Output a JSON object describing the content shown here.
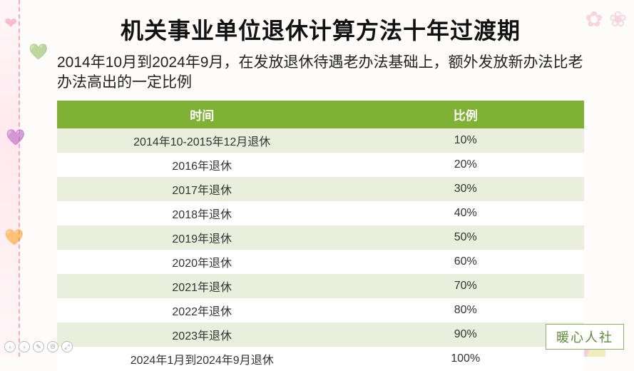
{
  "title": "机关事业单位退休计算方法十年过渡期",
  "subtitle": "2014年10月到2024年9月，在发放退休待遇老办法基础上，额外发放新办法比老办法高出的一定比例",
  "table": {
    "type": "table",
    "header_bg": "#7fb135",
    "header_color": "#ffffff",
    "row_odd_bg": "#e9efdc",
    "row_even_bg": "#ffffff",
    "columns": [
      "时间",
      "比例"
    ],
    "rows": [
      [
        "2014年10-2015年12月退休",
        "10%"
      ],
      [
        "2016年退休",
        "20%"
      ],
      [
        "2017年退休",
        "30%"
      ],
      [
        "2018年退休",
        "40%"
      ],
      [
        "2019年退休",
        "50%"
      ],
      [
        "2020年退休",
        "60%"
      ],
      [
        "2021年退休",
        "70%"
      ],
      [
        "2022年退休",
        "80%"
      ],
      [
        "2023年退休",
        "90%"
      ],
      [
        "2024年1月到2024年9月退休",
        "100%"
      ]
    ]
  },
  "watermark": "暖心人社",
  "nav": {
    "i1": "‹",
    "i2": "›",
    "i3": "✎",
    "i4": "⦾",
    "i5": "⤢"
  },
  "colors": {
    "title": "#111111",
    "subtitle": "#222222",
    "cell_text": "#333333",
    "watermark_border": "#8fb36a",
    "watermark_text": "#5e8a3a"
  }
}
